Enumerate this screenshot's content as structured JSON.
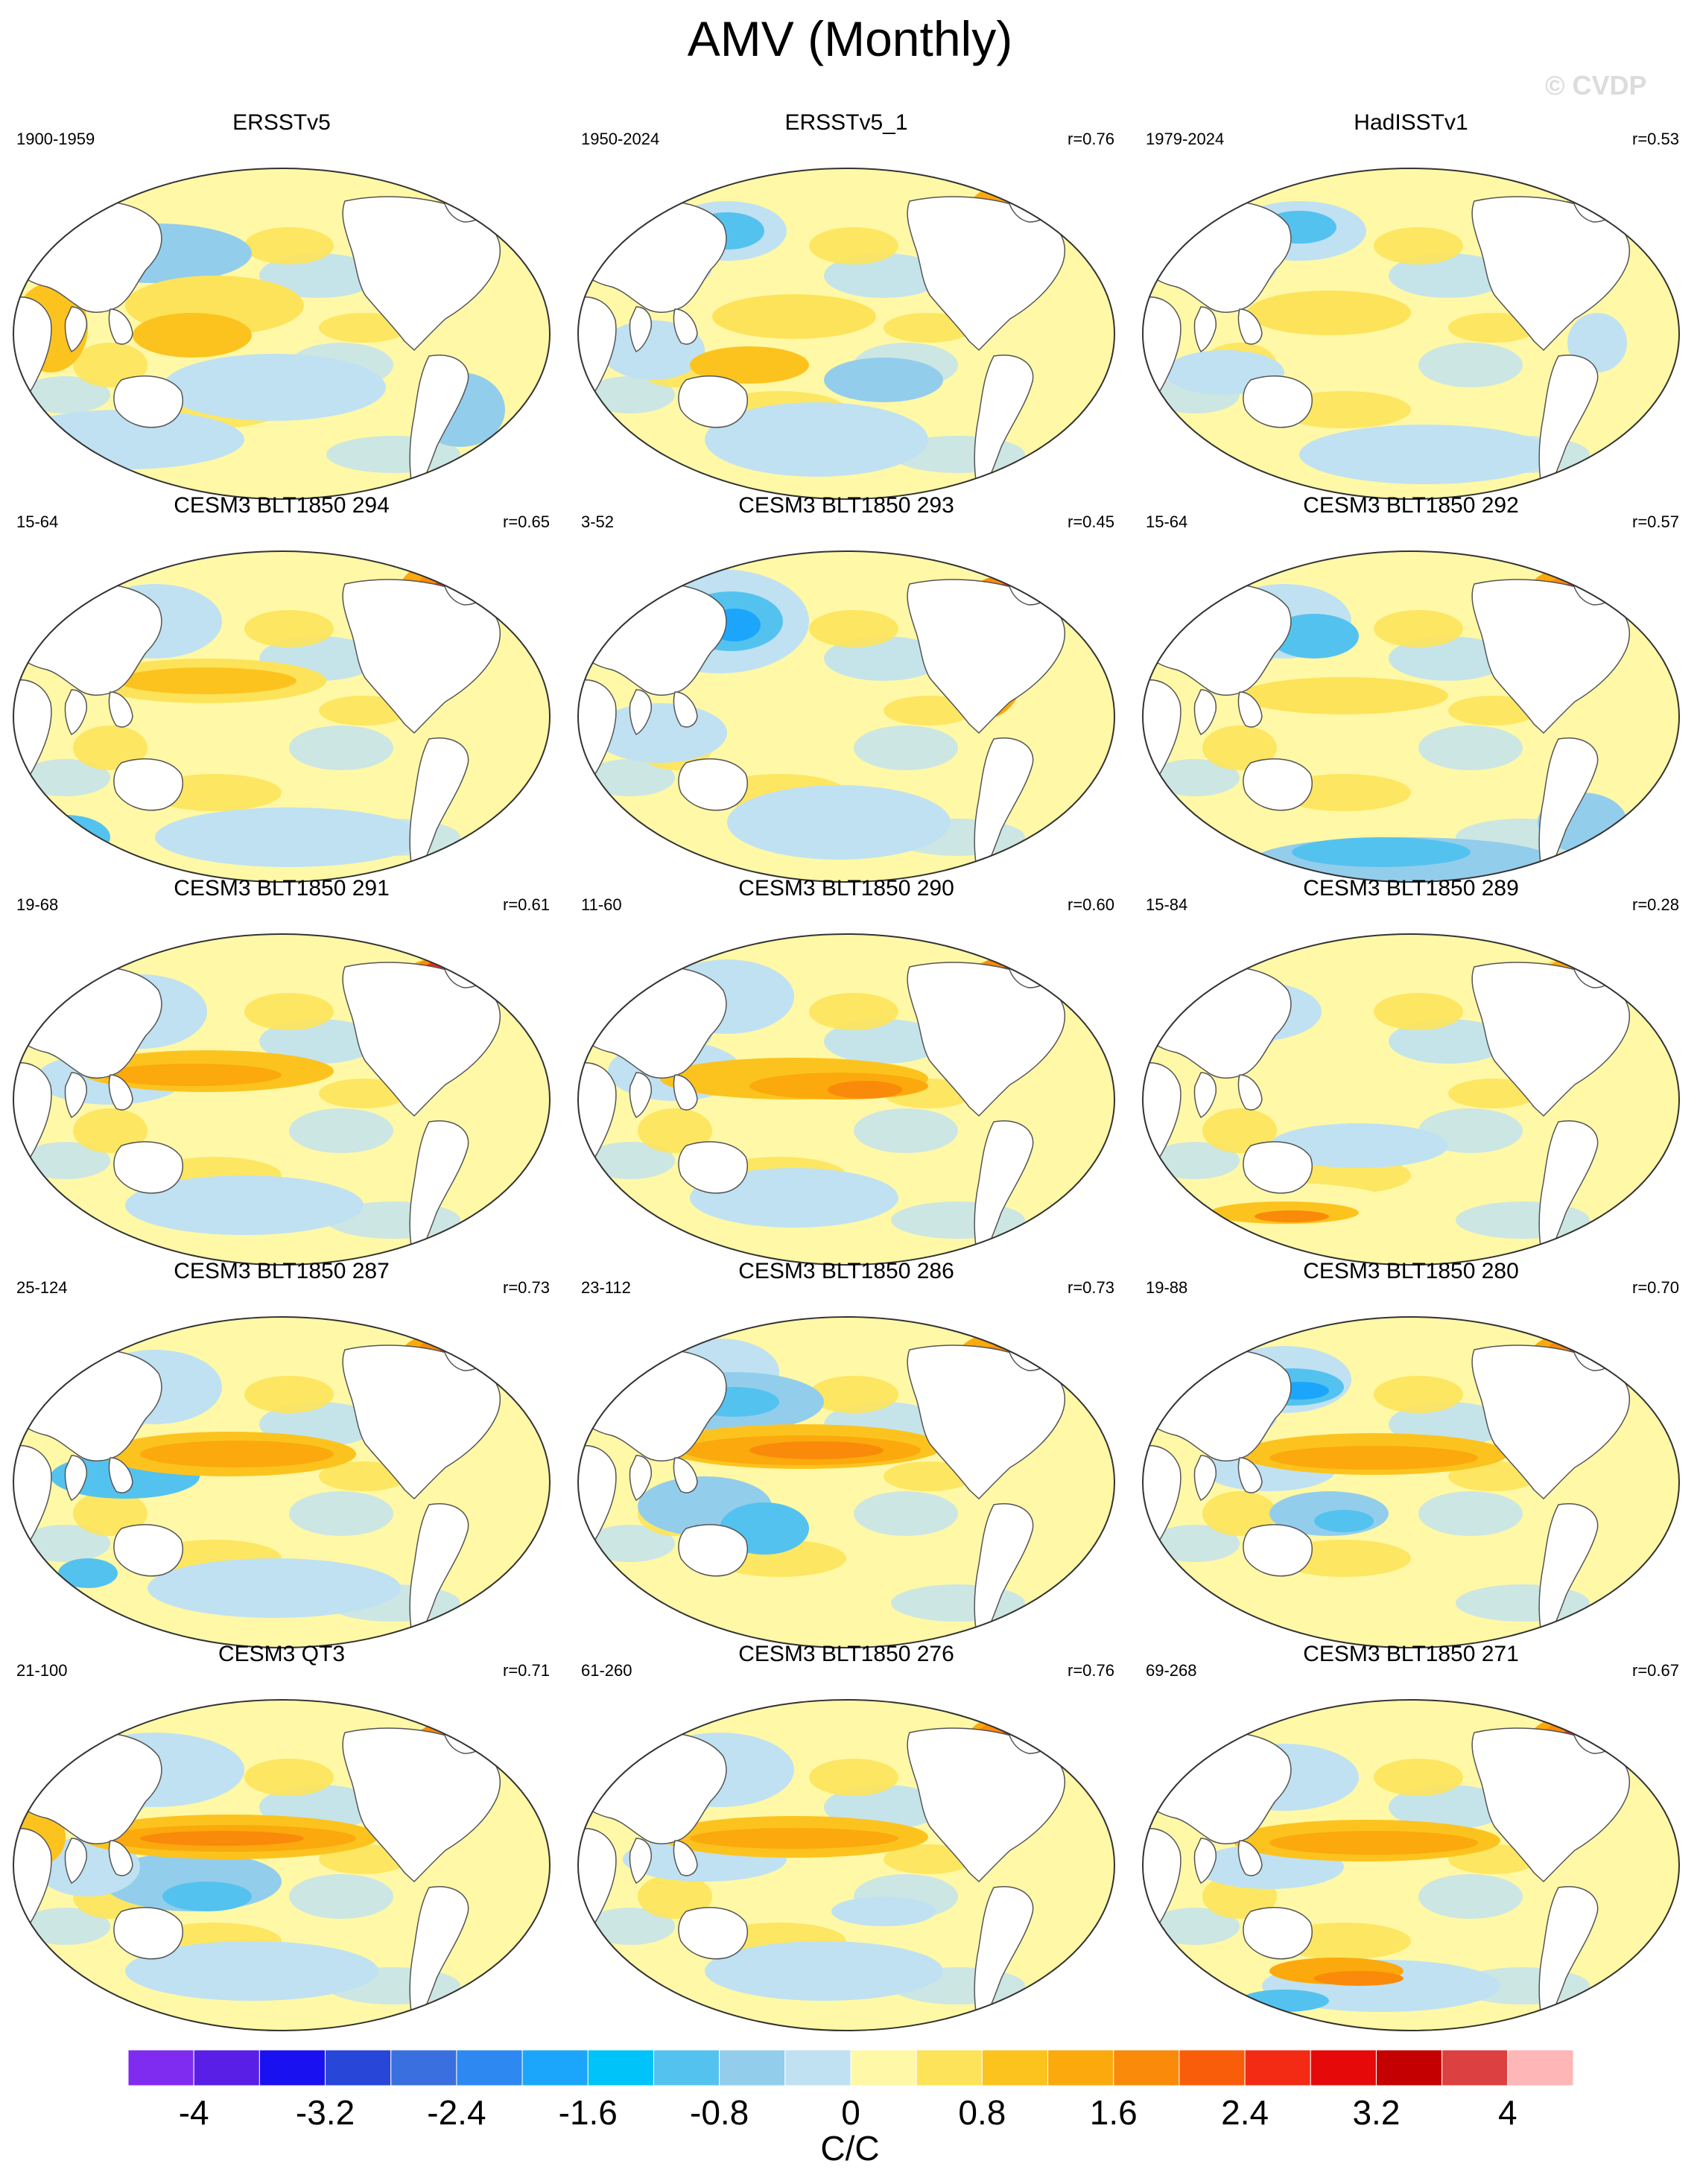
{
  "title": "AMV (Monthly)",
  "watermark": "© CVDP",
  "chart_data": {
    "type": "heatmap",
    "projection": "Robinson, Pacific-centered world maps",
    "variable": "SST regression onto AMV index",
    "units": "C/C",
    "colorbar": {
      "label": "C/C",
      "levels": [
        -4.4,
        -4,
        -3.6,
        -3.2,
        -2.8,
        -2.4,
        -2,
        -1.6,
        -1.2,
        -0.8,
        -0.4,
        0,
        0.4,
        0.8,
        1.2,
        1.6,
        2,
        2.4,
        2.8,
        3.2,
        3.6,
        4,
        4.4
      ],
      "tick_labels": [
        "-4",
        "-3.2",
        "-2.4",
        "-1.6",
        "-0.8",
        "0",
        "0.8",
        "1.6",
        "2.4",
        "3.2",
        "4"
      ],
      "colors": [
        "#7f2cf0",
        "#5a1fe6",
        "#1a11f0",
        "#2846d8",
        "#3a6fe0",
        "#2e88f2",
        "#1ca6fb",
        "#00c3fa",
        "#54c2ef",
        "#93cdec",
        "#bfe1f2",
        "#fff8a6",
        "#fde35a",
        "#fcc31f",
        "#fba90c",
        "#fa8a0a",
        "#fa5d0a",
        "#f32a14",
        "#e50909",
        "#c40000",
        "#dc4040",
        "#ffb6b6"
      ]
    },
    "panels": [
      {
        "name": "ERSSTv5",
        "years": "1900-1959",
        "r": ""
      },
      {
        "name": "ERSSTv5_1",
        "years": "1950-2024",
        "r": "r=0.76"
      },
      {
        "name": "HadISSTv1",
        "years": "1979-2024",
        "r": "r=0.53"
      },
      {
        "name": "CESM3 BLT1850 294",
        "years": "15-64",
        "r": "r=0.65"
      },
      {
        "name": "CESM3 BLT1850 293",
        "years": "3-52",
        "r": "r=0.45"
      },
      {
        "name": "CESM3 BLT1850 292",
        "years": "15-64",
        "r": "r=0.57"
      },
      {
        "name": "CESM3 BLT1850 291",
        "years": "19-68",
        "r": "r=0.61"
      },
      {
        "name": "CESM3 BLT1850 290",
        "years": "11-60",
        "r": "r=0.60"
      },
      {
        "name": "CESM3 BLT1850 289",
        "years": "15-84",
        "r": "r=0.28"
      },
      {
        "name": "CESM3 BLT1850 287",
        "years": "25-124",
        "r": "r=0.73"
      },
      {
        "name": "CESM3 BLT1850 286",
        "years": "23-112",
        "r": "r=0.73"
      },
      {
        "name": "CESM3 BLT1850 280",
        "years": "19-88",
        "r": "r=0.70"
      },
      {
        "name": "CESM3 QT3",
        "years": "21-100",
        "r": "r=0.71"
      },
      {
        "name": "CESM3 BLT1850 276",
        "years": "61-260",
        "r": "r=0.76"
      },
      {
        "name": "CESM3 BLT1850 271",
        "years": "69-268",
        "r": "r=0.67"
      }
    ]
  }
}
